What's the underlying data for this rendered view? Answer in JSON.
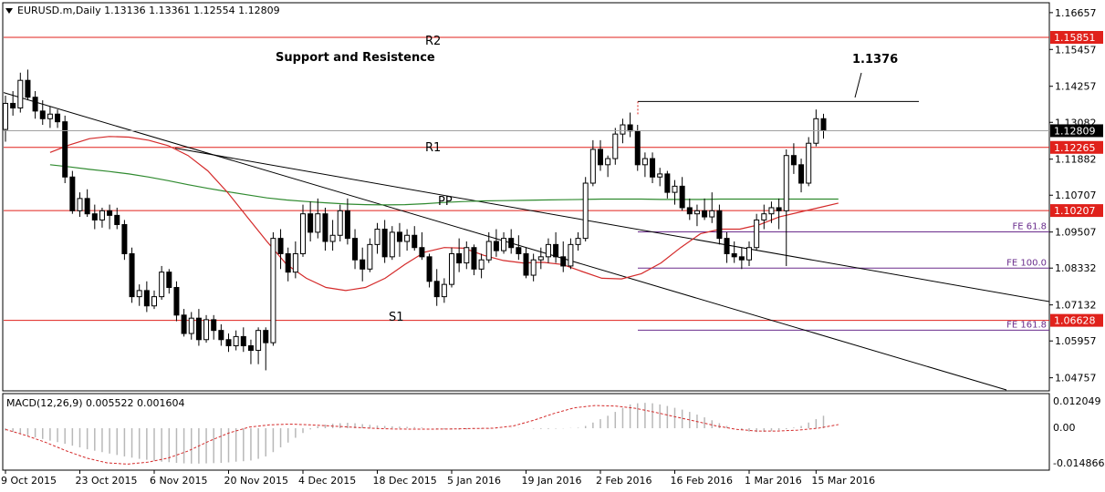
{
  "colors": {
    "background": "#ffffff",
    "frame": "#000000",
    "grid": "#c8c8c8",
    "candle_up": "#ffffff",
    "candle_down": "#000000",
    "pivot_line": "#e0211b",
    "pivot_badge": "#e0211b",
    "fib_line": "#6a2c8c",
    "trend_line": "#000000",
    "ma_fast": "#d42a2a",
    "ma_slow": "#2f8a2f",
    "macd_hist": "#b8b8b8",
    "macd_signal": "#d42a2a"
  },
  "header": {
    "symbol_line": "EURUSD.m,Daily  1.13136 1.13361 1.12554 1.12809"
  },
  "annotations": {
    "title": "Support and Resistence",
    "price_callout": "1.1376",
    "r2": "R2",
    "r1": "R1",
    "pp": "PP",
    "s1": "S1"
  },
  "macd_panel": {
    "label": "MACD(12,26,9) 0.005522 0.001604",
    "ticks": [
      "0.012049",
      "0.00",
      "-0.014866"
    ]
  },
  "chart_data": {
    "type": "candlestick",
    "instrument": "EURUSD.m",
    "timeframe": "Daily",
    "ohlc_current": {
      "open": 1.13136,
      "high": 1.13361,
      "low": 1.12554,
      "close": 1.12809
    },
    "y_ticks": [
      "1.16657",
      "1.15457",
      "1.14257",
      "1.13082",
      "1.11882",
      "1.10707",
      "1.09507",
      "1.08332",
      "1.07132",
      "1.05957",
      "1.04757"
    ],
    "x_ticks": [
      "9 Oct 2015",
      "23 Oct 2015",
      "6 Nov 2015",
      "20 Nov 2015",
      "4 Dec 2015",
      "18 Dec 2015",
      "5 Jan 2016",
      "19 Jan 2016",
      "2 Feb 2016",
      "16 Feb 2016",
      "1 Mar 2016",
      "15 Mar 2016"
    ],
    "ylim": [
      1.0436,
      1.1695
    ],
    "horizontal_levels": [
      {
        "name": "R2",
        "price": 1.15851,
        "badge": "1.15851"
      },
      {
        "name": "R1",
        "price": 1.12265,
        "badge": "1.12265"
      },
      {
        "name": "PP",
        "price": 1.10207,
        "badge": "1.10207"
      },
      {
        "name": "S1",
        "price": 1.06628,
        "badge": "1.06628"
      }
    ],
    "current_price_badge": "1.12809",
    "fib_levels": [
      {
        "label": "FE 61.8",
        "price": 1.0951
      },
      {
        "label": "FE 100.0",
        "price": 1.0833
      },
      {
        "label": "FE 161.8",
        "price": 1.0631
      }
    ],
    "resistance_segment_price": 1.1376,
    "candles": [
      [
        1.1285,
        1.1395,
        1.1245,
        1.137
      ],
      [
        1.137,
        1.141,
        1.133,
        1.1355
      ],
      [
        1.1355,
        1.147,
        1.134,
        1.1445
      ],
      [
        1.1445,
        1.148,
        1.138,
        1.139
      ],
      [
        1.139,
        1.141,
        1.132,
        1.1345
      ],
      [
        1.1345,
        1.138,
        1.13,
        1.132
      ],
      [
        1.132,
        1.136,
        1.129,
        1.1335
      ],
      [
        1.1335,
        1.135,
        1.129,
        1.131
      ],
      [
        1.131,
        1.133,
        1.111,
        1.113
      ],
      [
        1.113,
        1.115,
        1.101,
        1.102
      ],
      [
        1.102,
        1.108,
        1.1,
        1.106
      ],
      [
        1.106,
        1.109,
        1.1,
        1.101
      ],
      [
        1.101,
        1.104,
        1.096,
        1.099
      ],
      [
        1.099,
        1.103,
        1.0965,
        1.102
      ],
      [
        1.102,
        1.104,
        1.096,
        1.1005
      ],
      [
        1.1005,
        1.103,
        1.096,
        1.0975
      ],
      [
        1.0975,
        1.099,
        1.086,
        1.088
      ],
      [
        1.088,
        1.09,
        1.072,
        1.074
      ],
      [
        1.074,
        1.078,
        1.071,
        1.076
      ],
      [
        1.076,
        1.079,
        1.069,
        1.071
      ],
      [
        1.071,
        1.076,
        1.07,
        1.074
      ],
      [
        1.074,
        1.084,
        1.073,
        1.082
      ],
      [
        1.082,
        1.083,
        1.075,
        1.077
      ],
      [
        1.077,
        1.079,
        1.066,
        1.068
      ],
      [
        1.068,
        1.07,
        1.061,
        1.062
      ],
      [
        1.062,
        1.069,
        1.06,
        1.067
      ],
      [
        1.067,
        1.07,
        1.058,
        1.06
      ],
      [
        1.06,
        1.068,
        1.059,
        1.0665
      ],
      [
        1.0665,
        1.068,
        1.06,
        1.063
      ],
      [
        1.063,
        1.065,
        1.058,
        1.06
      ],
      [
        1.06,
        1.062,
        1.056,
        1.058
      ],
      [
        1.058,
        1.063,
        1.0565,
        1.061
      ],
      [
        1.061,
        1.064,
        1.056,
        1.058
      ],
      [
        1.058,
        1.06,
        1.052,
        1.0565
      ],
      [
        1.0565,
        1.064,
        1.052,
        1.063
      ],
      [
        1.063,
        1.064,
        1.05,
        1.059
      ],
      [
        1.059,
        1.095,
        1.058,
        1.093
      ],
      [
        1.093,
        1.096,
        1.083,
        1.088
      ],
      [
        1.088,
        1.09,
        1.079,
        1.082
      ],
      [
        1.082,
        1.092,
        1.08,
        1.088
      ],
      [
        1.088,
        1.104,
        1.087,
        1.101
      ],
      [
        1.101,
        1.105,
        1.092,
        1.095
      ],
      [
        1.095,
        1.106,
        1.093,
        1.101
      ],
      [
        1.101,
        1.103,
        1.089,
        1.092
      ],
      [
        1.092,
        1.099,
        1.089,
        1.094
      ],
      [
        1.094,
        1.104,
        1.092,
        1.102
      ],
      [
        1.102,
        1.106,
        1.091,
        1.093
      ],
      [
        1.093,
        1.096,
        1.083,
        1.086
      ],
      [
        1.086,
        1.09,
        1.079,
        1.083
      ],
      [
        1.083,
        1.093,
        1.082,
        1.091
      ],
      [
        1.091,
        1.098,
        1.088,
        1.096
      ],
      [
        1.096,
        1.099,
        1.085,
        1.087
      ],
      [
        1.087,
        1.097,
        1.086,
        1.095
      ],
      [
        1.095,
        1.098,
        1.087,
        1.092
      ],
      [
        1.092,
        1.096,
        1.089,
        1.094
      ],
      [
        1.094,
        1.097,
        1.089,
        1.09
      ],
      [
        1.09,
        1.095,
        1.086,
        1.087
      ],
      [
        1.087,
        1.088,
        1.077,
        1.079
      ],
      [
        1.079,
        1.083,
        1.071,
        1.074
      ],
      [
        1.074,
        1.08,
        1.072,
        1.078
      ],
      [
        1.078,
        1.09,
        1.077,
        1.088
      ],
      [
        1.088,
        1.093,
        1.082,
        1.085
      ],
      [
        1.085,
        1.092,
        1.083,
        1.09
      ],
      [
        1.09,
        1.091,
        1.081,
        1.083
      ],
      [
        1.083,
        1.088,
        1.08,
        1.086
      ],
      [
        1.086,
        1.095,
        1.085,
        1.092
      ],
      [
        1.092,
        1.096,
        1.087,
        1.089
      ],
      [
        1.089,
        1.095,
        1.088,
        1.093
      ],
      [
        1.093,
        1.096,
        1.088,
        1.09
      ],
      [
        1.09,
        1.094,
        1.086,
        1.088
      ],
      [
        1.088,
        1.09,
        1.08,
        1.081
      ],
      [
        1.081,
        1.088,
        1.079,
        1.086
      ],
      [
        1.086,
        1.09,
        1.083,
        1.087
      ],
      [
        1.087,
        1.093,
        1.085,
        1.091
      ],
      [
        1.091,
        1.095,
        1.085,
        1.087
      ],
      [
        1.087,
        1.092,
        1.082,
        1.084
      ],
      [
        1.084,
        1.093,
        1.083,
        1.091
      ],
      [
        1.091,
        1.095,
        1.089,
        1.093
      ],
      [
        1.093,
        1.113,
        1.092,
        1.111
      ],
      [
        1.111,
        1.125,
        1.11,
        1.122
      ],
      [
        1.122,
        1.125,
        1.115,
        1.117
      ],
      [
        1.117,
        1.12,
        1.113,
        1.119
      ],
      [
        1.119,
        1.129,
        1.117,
        1.127
      ],
      [
        1.127,
        1.132,
        1.124,
        1.13
      ],
      [
        1.13,
        1.134,
        1.126,
        1.128
      ],
      [
        1.128,
        1.13,
        1.115,
        1.117
      ],
      [
        1.117,
        1.121,
        1.113,
        1.119
      ],
      [
        1.119,
        1.121,
        1.111,
        1.113
      ],
      [
        1.113,
        1.116,
        1.11,
        1.114
      ],
      [
        1.114,
        1.115,
        1.106,
        1.108
      ],
      [
        1.108,
        1.112,
        1.104,
        1.11
      ],
      [
        1.11,
        1.113,
        1.102,
        1.103
      ],
      [
        1.103,
        1.106,
        1.099,
        1.101
      ],
      [
        1.101,
        1.104,
        1.097,
        1.102
      ],
      [
        1.102,
        1.106,
        1.099,
        1.1
      ],
      [
        1.1,
        1.108,
        1.098,
        1.102
      ],
      [
        1.102,
        1.104,
        1.091,
        1.093
      ],
      [
        1.093,
        1.095,
        1.085,
        1.088
      ],
      [
        1.088,
        1.092,
        1.085,
        1.087
      ],
      [
        1.087,
        1.09,
        1.083,
        1.086
      ],
      [
        1.086,
        1.092,
        1.084,
        1.09
      ],
      [
        1.09,
        1.101,
        1.089,
        1.099
      ],
      [
        1.099,
        1.104,
        1.096,
        1.101
      ],
      [
        1.101,
        1.105,
        1.098,
        1.103
      ],
      [
        1.103,
        1.106,
        1.096,
        1.102
      ],
      [
        1.102,
        1.122,
        1.084,
        1.12
      ],
      [
        1.12,
        1.124,
        1.114,
        1.117
      ],
      [
        1.117,
        1.119,
        1.108,
        1.111
      ],
      [
        1.111,
        1.126,
        1.11,
        1.124
      ],
      [
        1.124,
        1.135,
        1.123,
        1.132
      ],
      [
        1.132,
        1.1336,
        1.1255,
        1.1281
      ]
    ],
    "ma_fast": [
      1.121,
      1.1235,
      1.1255,
      1.1262,
      1.126,
      1.125,
      1.1232,
      1.12,
      1.115,
      1.108,
      1.1,
      1.092,
      1.0845,
      1.08,
      1.077,
      1.076,
      1.077,
      1.08,
      1.0845,
      1.0885,
      1.09,
      1.0898,
      1.0875,
      1.0858,
      1.085,
      1.0852,
      1.0845,
      1.0822,
      1.08,
      1.0798,
      1.0815,
      1.085,
      1.09,
      1.0945,
      1.096,
      1.096,
      1.0975,
      1.1,
      1.1015,
      1.103,
      1.1045
    ],
    "ma_slow": [
      1.117,
      1.1163,
      1.1155,
      1.1148,
      1.114,
      1.113,
      1.1118,
      1.1105,
      1.1093,
      1.1082,
      1.1072,
      1.1062,
      1.1055,
      1.105,
      1.1046,
      1.1042,
      1.104,
      1.1039,
      1.104,
      1.1043,
      1.1047,
      1.105,
      1.1052,
      1.1053,
      1.1054,
      1.1055,
      1.1056,
      1.1057,
      1.1058,
      1.1058,
      1.1058,
      1.1057,
      1.1057,
      1.1057,
      1.1058,
      1.1058,
      1.1058,
      1.1058,
      1.1058,
      1.1058,
      1.1058
    ],
    "macd_hist": [
      -0.001,
      -0.0015,
      -0.0022,
      -0.003,
      -0.0038,
      -0.0045,
      -0.0052,
      -0.0058,
      -0.0065,
      -0.0073,
      -0.008,
      -0.0088,
      -0.0094,
      -0.01,
      -0.0106,
      -0.0112,
      -0.0118,
      -0.0123,
      -0.0128,
      -0.0132,
      -0.0136,
      -0.014,
      -0.0142,
      -0.0145,
      -0.0147,
      -0.0148,
      -0.0148,
      -0.0147,
      -0.0146,
      -0.0145,
      -0.0143,
      -0.014,
      -0.0138,
      -0.0135,
      -0.0128,
      -0.0118,
      -0.01,
      -0.008,
      -0.006,
      -0.004,
      -0.002,
      -0.0005,
      0.0008,
      0.0016,
      0.002,
      0.0022,
      0.0024,
      0.0022,
      0.0018,
      0.0015,
      0.0012,
      0.001,
      0.0008,
      0.0007,
      0.0006,
      0.0005,
      0.0003,
      0.0,
      -0.0003,
      -0.0005,
      -0.0006,
      -0.0006,
      -0.0005,
      -0.0004,
      -0.0003,
      -0.0002,
      -0.0001,
      0.0,
      0.0001,
      0.0001,
      0.0,
      -0.0002,
      -0.0003,
      -0.0003,
      -0.0002,
      -0.0001,
      0.0001,
      0.0002,
      0.001,
      0.0025,
      0.004,
      0.0055,
      0.0072,
      0.009,
      0.0105,
      0.011,
      0.0112,
      0.011,
      0.0105,
      0.0098,
      0.009,
      0.0082,
      0.0072,
      0.006,
      0.0048,
      0.0035,
      0.0022,
      0.001,
      0.0,
      -0.0008,
      -0.0014,
      -0.0016,
      -0.0015,
      -0.0012,
      -0.0008,
      -0.0004,
      0.0003,
      0.001,
      0.0025,
      0.004,
      0.0055
    ],
    "macd_signal": [
      -0.0005,
      -0.003,
      -0.006,
      -0.0095,
      -0.0125,
      -0.0145,
      -0.015,
      -0.0142,
      -0.0125,
      -0.0095,
      -0.0055,
      -0.002,
      0.0005,
      0.0015,
      0.0018,
      0.0015,
      0.001,
      0.0005,
      0.0,
      -0.0003,
      -0.0004,
      -0.0004,
      -0.0003,
      -0.0001,
      0.0,
      0.001,
      0.0035,
      0.0065,
      0.009,
      0.01,
      0.0098,
      0.0088,
      0.007,
      0.005,
      0.003,
      0.001,
      -0.0005,
      -0.0012,
      -0.0012,
      -0.0008,
      0.0,
      0.0016
    ]
  }
}
